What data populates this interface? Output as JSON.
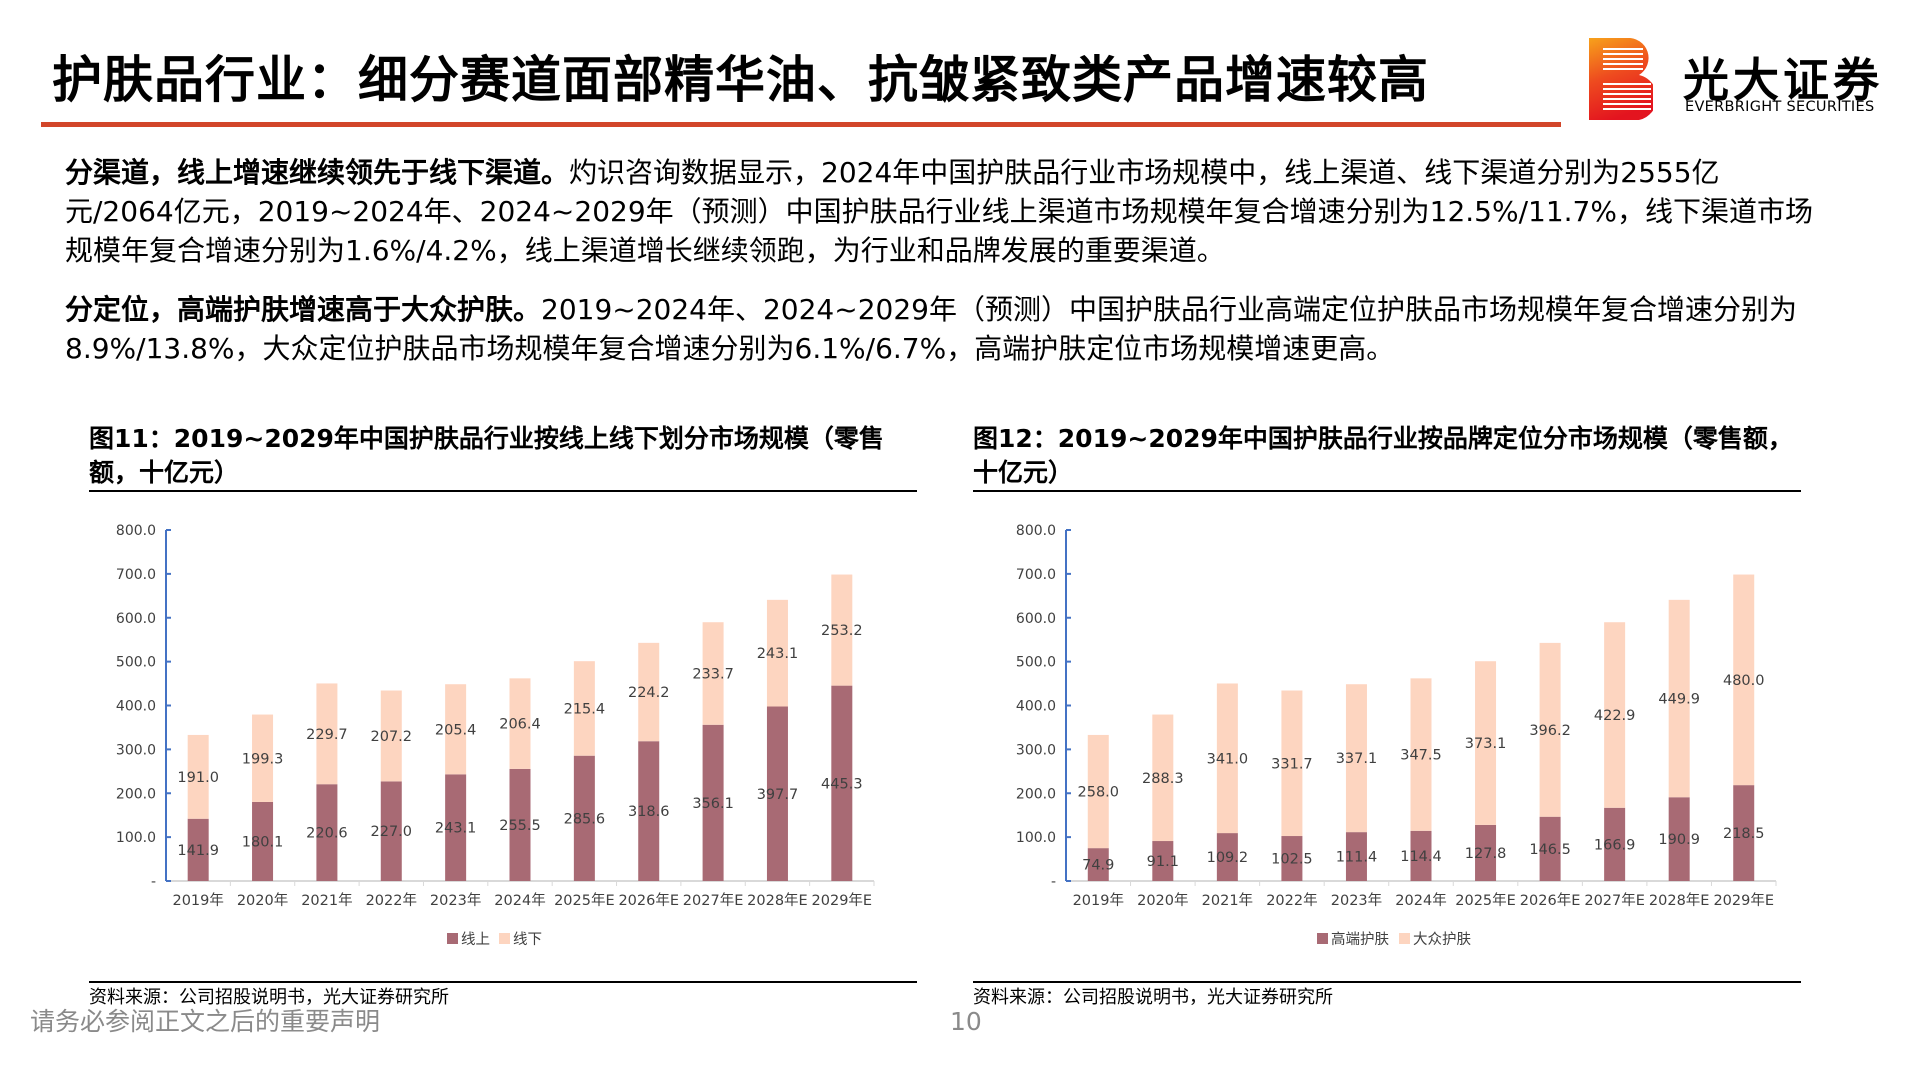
{
  "header": {
    "title": "护肤品行业：细分赛道面部精华油、抗皱紧致类产品增速较高",
    "logo_cn": "光大证券",
    "logo_en": "EVERBRIGHT SECURITIES",
    "accent_color": "#d2462a"
  },
  "paragraphs": [
    {
      "lead": "分渠道，线上增速继续领先于线下渠道。",
      "body": "灼识咨询数据显示，2024年中国护肤品行业市场规模中，线上渠道、线下渠道分别为2555亿元/2064亿元，2019~2024年、2024~2029年（预测）中国护肤品行业线上渠道市场规模年复合增速分别为12.5%/11.7%，线下渠道市场规模年复合增速分别为1.6%/4.2%，线上渠道增长继续领跑，为行业和品牌发展的重要渠道。"
    },
    {
      "lead": "分定位，高端护肤增速高于大众护肤。",
      "body": "2019~2024年、2024~2029年（预测）中国护肤品行业高端定位护肤品市场规模年复合增速分别为8.9%/13.8%，大众定位护肤品市场规模年复合增速分别为6.1%/6.7%，高端护肤定位市场规模增速更高。"
    }
  ],
  "chart_data": [
    {
      "type": "bar",
      "stacked": true,
      "title": "图11：2019~2029年中国护肤品行业按线上线下划分市场规模（零售额，十亿元）",
      "categories": [
        "2019年",
        "2020年",
        "2021年",
        "2022年",
        "2023年",
        "2024年",
        "2025年E",
        "2026年E",
        "2027年E",
        "2028年E",
        "2029年E"
      ],
      "series": [
        {
          "name": "线上",
          "color": "#a86a74",
          "values": [
            141.9,
            180.1,
            220.6,
            227.0,
            243.1,
            255.5,
            285.6,
            318.6,
            356.1,
            397.7,
            445.3
          ]
        },
        {
          "name": "线下",
          "color": "#fdd5c0",
          "values": [
            191.0,
            199.3,
            229.7,
            207.2,
            205.4,
            206.4,
            215.4,
            224.2,
            233.7,
            243.1,
            253.2
          ]
        }
      ],
      "yticks": [
        "-",
        "100.0",
        "200.0",
        "300.0",
        "400.0",
        "500.0",
        "600.0",
        "700.0",
        "800.0"
      ],
      "ylim": [
        0,
        800
      ],
      "grid": false,
      "legend": "bottom",
      "source": "资料来源：公司招股说明书，光大证券研究所"
    },
    {
      "type": "bar",
      "stacked": true,
      "title": "图12：2019~2029年中国护肤品行业按品牌定位分市场规模（零售额，十亿元）",
      "categories": [
        "2019年",
        "2020年",
        "2021年",
        "2022年",
        "2023年",
        "2024年",
        "2025年E",
        "2026年E",
        "2027年E",
        "2028年E",
        "2029年E"
      ],
      "series": [
        {
          "name": "高端护肤",
          "color": "#a86a74",
          "values": [
            74.9,
            91.1,
            109.2,
            102.5,
            111.4,
            114.4,
            127.8,
            146.5,
            166.9,
            190.9,
            218.5
          ]
        },
        {
          "name": "大众护肤",
          "color": "#fdd5c0",
          "values": [
            258.0,
            288.3,
            341.0,
            331.7,
            337.1,
            347.5,
            373.1,
            396.2,
            422.9,
            449.9,
            480.0
          ]
        }
      ],
      "yticks": [
        "-",
        "100.0",
        "200.0",
        "300.0",
        "400.0",
        "500.0",
        "600.0",
        "700.0",
        "800.0"
      ],
      "ylim": [
        0,
        800
      ],
      "grid": false,
      "legend": "bottom",
      "source": "资料来源：公司招股说明书，光大证券研究所"
    }
  ],
  "footer": {
    "note": "请务必参阅正文之后的重要声明",
    "page": "10"
  }
}
